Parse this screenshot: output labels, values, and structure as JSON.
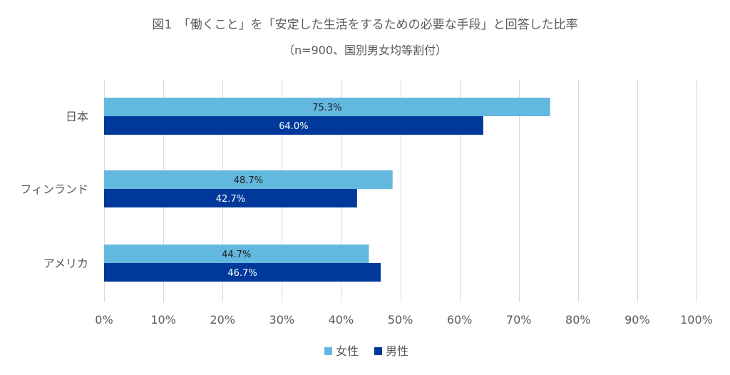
{
  "chart_data": {
    "type": "bar",
    "orientation": "horizontal",
    "title": "図1　「働くこと」を「安定した生活をするための必要な手段」と回答した比率",
    "subtitle": "（n=900、国別男女均等割付）",
    "categories": [
      "日本",
      "フィンランド",
      "アメリカ"
    ],
    "series": [
      {
        "name": "女性",
        "values": [
          75.3,
          48.7,
          44.7
        ],
        "labels": [
          "75.3%",
          "48.7%",
          "44.7%"
        ],
        "color": "#62B8DE",
        "label_color": "#1f1f1f"
      },
      {
        "name": "男性",
        "values": [
          64.0,
          42.7,
          46.7
        ],
        "labels": [
          "64.0%",
          "42.7%",
          "46.7%"
        ],
        "color": "#00399A",
        "label_color": "#ffffff"
      }
    ],
    "xlim": [
      0,
      100
    ],
    "x_ticks": [
      0,
      10,
      20,
      30,
      40,
      50,
      60,
      70,
      80,
      90,
      100
    ],
    "x_tick_labels": [
      "0%",
      "10%",
      "20%",
      "30%",
      "40%",
      "50%",
      "60%",
      "70%",
      "80%",
      "90%",
      "100%"
    ],
    "xlabel": "",
    "ylabel": "",
    "grid": "vertical",
    "legend_position": "bottom"
  }
}
